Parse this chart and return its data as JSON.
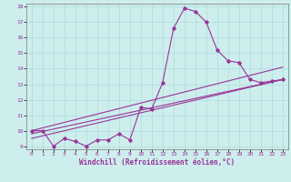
{
  "xlabel": "Windchill (Refroidissement éolien,°C)",
  "background_color": "#cdeeed",
  "grid_color": "#aadddd",
  "line_color": "#993399",
  "xlim": [
    -0.5,
    23.5
  ],
  "ylim": [
    8.8,
    18.2
  ],
  "xticks": [
    0,
    1,
    2,
    3,
    4,
    5,
    6,
    7,
    8,
    9,
    10,
    11,
    12,
    13,
    14,
    15,
    16,
    17,
    18,
    19,
    20,
    21,
    22,
    23
  ],
  "yticks": [
    9,
    10,
    11,
    12,
    13,
    14,
    15,
    16,
    17,
    18
  ],
  "main_x": [
    0,
    1,
    2,
    3,
    4,
    5,
    6,
    7,
    8,
    9,
    10,
    11,
    12,
    13,
    14,
    15,
    16,
    17,
    18,
    19,
    20,
    21,
    22,
    23
  ],
  "main_y": [
    10.0,
    10.0,
    9.0,
    9.5,
    9.3,
    9.0,
    9.4,
    9.4,
    9.8,
    9.4,
    11.5,
    11.4,
    13.1,
    16.6,
    17.9,
    17.7,
    17.0,
    15.2,
    14.5,
    14.4,
    13.3,
    13.1,
    13.2,
    13.3
  ],
  "line1_x": [
    0,
    23
  ],
  "line1_y": [
    10.0,
    14.1
  ],
  "line2_x": [
    0,
    23
  ],
  "line2_y": [
    9.8,
    13.3
  ],
  "line3_x": [
    0,
    23
  ],
  "line3_y": [
    9.5,
    13.3
  ]
}
